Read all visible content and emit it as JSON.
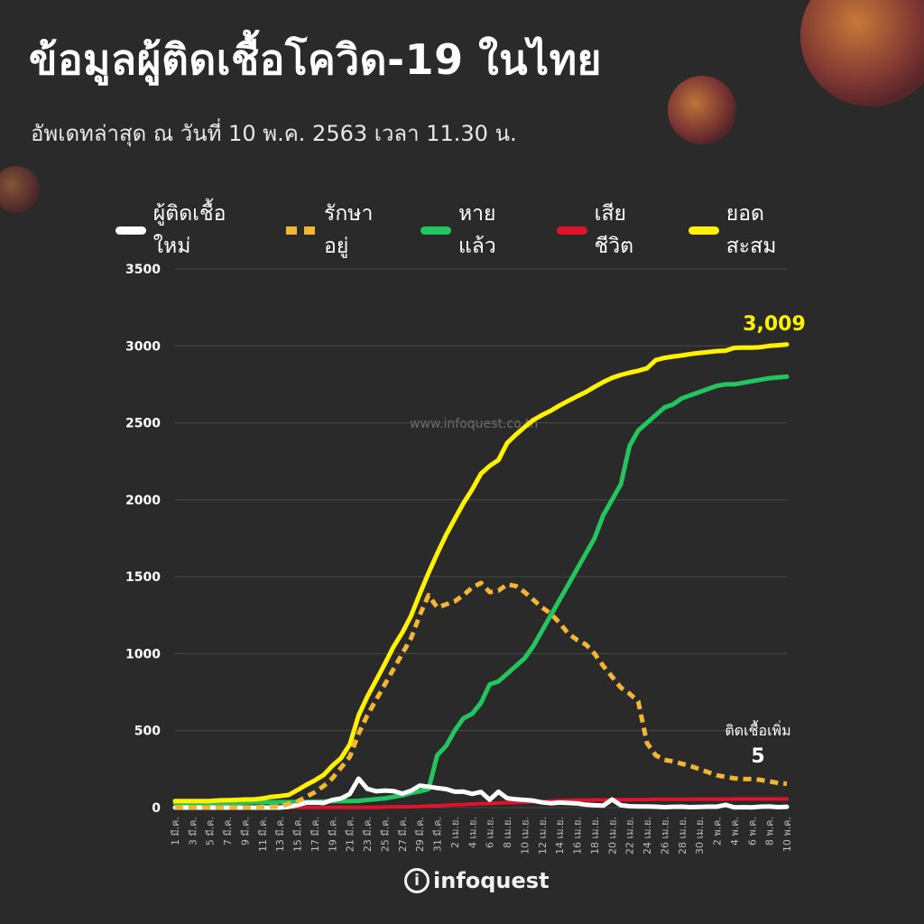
{
  "header": {
    "title": "ข้อมูลผู้ติดเชื้อโควิด-19 ในไทย",
    "subtitle": "อัพเดทล่าสุด ณ วันที่  10 พ.ค. 2563 เวลา 11.30 น."
  },
  "watermark": "www.infoquest.co.th",
  "logo": {
    "mark": "i",
    "text": "infoquest"
  },
  "colors": {
    "background": "#2b2a2a",
    "new_cases": "#ffffff",
    "in_treatment": "#f2b632",
    "recovered": "#22c55e",
    "deaths": "#e3122a",
    "cumulative": "#fff200"
  },
  "chart_data": {
    "type": "line",
    "ylim": [
      0,
      3500
    ],
    "yticks": [
      0,
      500,
      1000,
      1500,
      2000,
      2500,
      3000,
      3500
    ],
    "grid": true,
    "legend_position": "top",
    "xtick_labels": [
      "1 มี.ค.",
      "3 มี.ค.",
      "5 มี.ค.",
      "7 มี.ค.",
      "9 มี.ค.",
      "11 มี.ค.",
      "13 มี.ค.",
      "15 มี.ค.",
      "17 มี.ค.",
      "19 มี.ค.",
      "21 มี.ค.",
      "23 มี.ค.",
      "25 มี.ค.",
      "27 มี.ค.",
      "29 มี.ค.",
      "31 มี.ค.",
      "2 เม.ย.",
      "4 เม.ย.",
      "6 เม.ย.",
      "8 เม.ย.",
      "10 เม.ย.",
      "12 เม.ย.",
      "14 เม.ย.",
      "16 เม.ย.",
      "18 เม.ย.",
      "20 เม.ย.",
      "22 เม.ย.",
      "24 เม.ย.",
      "26 เม.ย.",
      "28 เม.ย.",
      "30 เม.ย.",
      "2 พ.ค.",
      "4 พ.ค.",
      "6 พ.ค.",
      "8 พ.ค.",
      "10 พ.ค."
    ],
    "series": [
      {
        "name": "ผู้ติดเชื้อใหม่",
        "key": "new_cases",
        "style": "solid",
        "values": [
          0,
          0,
          0,
          0,
          0,
          0,
          0,
          0,
          0,
          0,
          0,
          0,
          0,
          5,
          16,
          32,
          33,
          30,
          50,
          60,
          89,
          188,
          122,
          106,
          111,
          107,
          91,
          109,
          143,
          136,
          127,
          120,
          103,
          104,
          89,
          102,
          51,
          103,
          61,
          54,
          50,
          45,
          34,
          28,
          33,
          30,
          27,
          19,
          15,
          13,
          53,
          15,
          9,
          7,
          7,
          6,
          3,
          5,
          6,
          3,
          4,
          6,
          6,
          18,
          1,
          3,
          1,
          6,
          7,
          3,
          5
        ]
      },
      {
        "name": "รักษาอยู่",
        "key": "in_treatment",
        "style": "dashed",
        "values": [
          1,
          1,
          1,
          1,
          1,
          1,
          2,
          2,
          2,
          2,
          4,
          5,
          6,
          25,
          40,
          70,
          100,
          140,
          190,
          260,
          330,
          480,
          600,
          700,
          800,
          900,
          1000,
          1100,
          1250,
          1380,
          1300,
          1320,
          1340,
          1380,
          1430,
          1460,
          1400,
          1410,
          1450,
          1440,
          1400,
          1350,
          1300,
          1260,
          1200,
          1130,
          1090,
          1060,
          1000,
          920,
          850,
          780,
          740,
          690,
          420,
          340,
          310,
          300,
          285,
          270,
          250,
          230,
          210,
          200,
          190,
          185,
          185,
          180,
          170,
          160,
          155
        ]
      },
      {
        "name": "หายแล้ว",
        "key": "recovered",
        "style": "solid",
        "values": [
          28,
          29,
          29,
          30,
          30,
          31,
          31,
          31,
          33,
          35,
          35,
          35,
          36,
          36,
          37,
          37,
          38,
          40,
          42,
          43,
          43,
          44,
          50,
          55,
          60,
          70,
          80,
          95,
          105,
          120,
          340,
          400,
          500,
          580,
          610,
          680,
          800,
          820,
          870,
          920,
          970,
          1050,
          1150,
          1250,
          1350,
          1450,
          1550,
          1650,
          1750,
          1900,
          2000,
          2100,
          2350,
          2450,
          2500,
          2550,
          2600,
          2620,
          2660,
          2680,
          2700,
          2720,
          2740,
          2750,
          2750,
          2760,
          2770,
          2780,
          2790,
          2795,
          2800
        ]
      },
      {
        "name": "เสียชีวิต",
        "key": "deaths",
        "style": "solid",
        "values": [
          1,
          1,
          1,
          1,
          1,
          1,
          1,
          1,
          1,
          1,
          1,
          1,
          1,
          1,
          1,
          1,
          1,
          1,
          1,
          1,
          1,
          1,
          1,
          1,
          4,
          4,
          5,
          6,
          7,
          10,
          12,
          15,
          19,
          20,
          23,
          26,
          27,
          30,
          32,
          33,
          35,
          38,
          40,
          43,
          46,
          47,
          48,
          49,
          50,
          50,
          51,
          51,
          51,
          52,
          52,
          54,
          54,
          54,
          54,
          54,
          55,
          55,
          55,
          55,
          56,
          56,
          56,
          56,
          56,
          56,
          56
        ]
      },
      {
        "name": "ยอดสะสม",
        "key": "cumulative",
        "style": "solid",
        "values": [
          42,
          42,
          43,
          43,
          43,
          47,
          48,
          50,
          53,
          53,
          59,
          70,
          75,
          82,
          114,
          147,
          177,
          212,
          272,
          322,
          411,
          599,
          721,
          827,
          934,
          1045,
          1136,
          1245,
          1388,
          1524,
          1651,
          1771,
          1875,
          1978,
          2067,
          2169,
          2220,
          2258,
          2369,
          2423,
          2473,
          2518,
          2551,
          2579,
          2613,
          2643,
          2672,
          2700,
          2733,
          2765,
          2792,
          2811,
          2826,
          2838,
          2854,
          2907,
          2922,
          2931,
          2938,
          2947,
          2954,
          2960,
          2966,
          2969,
          2987,
          2988,
          2989,
          2992,
          3000,
          3004,
          3009
        ]
      }
    ],
    "annotations": [
      {
        "text": "3,009",
        "series": "cumulative"
      },
      {
        "text": "ติดเชื้อเพิ่ม",
        "series": "new_cases"
      },
      {
        "text": "5",
        "series": "new_cases"
      }
    ]
  }
}
